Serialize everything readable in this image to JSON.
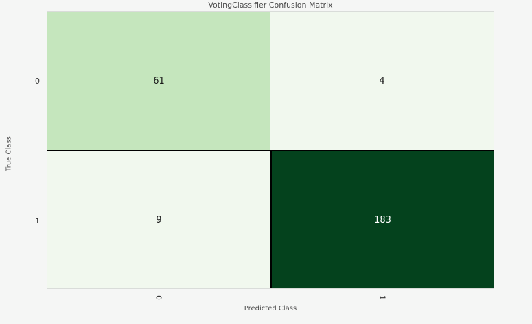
{
  "chart_data": {
    "type": "heatmap",
    "title": "VotingClassifier Confusion Matrix",
    "xlabel": "Predicted Class",
    "ylabel": "True Class",
    "x_ticks": [
      "0",
      "1"
    ],
    "y_ticks": [
      "0",
      "1"
    ],
    "matrix": [
      [
        61,
        4
      ],
      [
        9,
        183
      ]
    ],
    "cell_colors": [
      [
        "#c5e6bd",
        "#f1f8ee"
      ],
      [
        "#f1f8ee",
        "#04421d"
      ]
    ],
    "text_colors": [
      [
        "#1a1a1a",
        "#1a1a1a"
      ],
      [
        "#1a1a1a",
        "#ffffff"
      ]
    ],
    "colormap": "Greens",
    "legend": "none",
    "grid": false
  }
}
